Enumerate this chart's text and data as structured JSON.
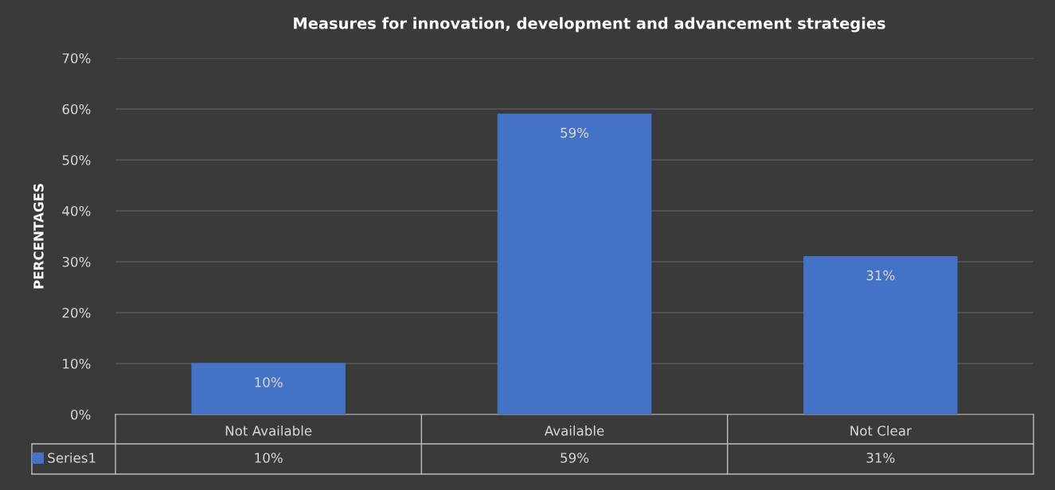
{
  "chart_data": {
    "type": "bar",
    "title": "Measures for innovation, development and advancement strategies",
    "ylabel": "PERCENTAGES",
    "categories": [
      "Not Available",
      "Available",
      "Not Clear"
    ],
    "series": [
      {
        "name": "Series1",
        "color": "#4472c4",
        "values": [
          10,
          59,
          31
        ],
        "value_labels": [
          "10%",
          "59%",
          "31%"
        ]
      }
    ],
    "ylim": [
      0,
      70
    ],
    "yticks": [
      {
        "value": 0,
        "label": "0%"
      },
      {
        "value": 10,
        "label": "10%"
      },
      {
        "value": 20,
        "label": "20%"
      },
      {
        "value": 30,
        "label": "30%"
      },
      {
        "value": 40,
        "label": "40%"
      },
      {
        "value": 50,
        "label": "50%"
      },
      {
        "value": 60,
        "label": "60%"
      },
      {
        "value": 70,
        "label": "70%"
      }
    ],
    "grid": "y",
    "legend": "bottom left"
  }
}
